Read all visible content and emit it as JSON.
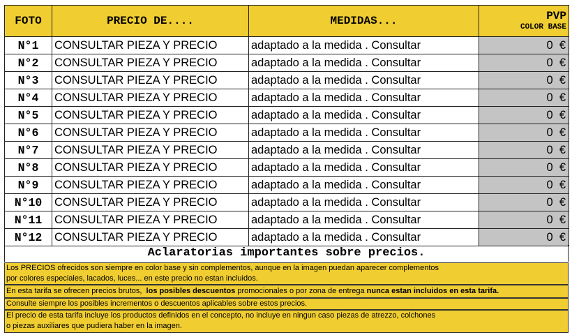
{
  "header": {
    "foto": "FOTO",
    "precio": "PRECIO DE....",
    "medidas": "MEDIDAS...",
    "pvp": "PVP",
    "pvp_sub": "COLOR BASE"
  },
  "rows": [
    {
      "foto": "N°1",
      "precio": "CONSULTAR PIEZA Y PRECIO",
      "medidas": "adaptado a la medida . Consultar",
      "pvp": "0  €"
    },
    {
      "foto": "N°2",
      "precio": "CONSULTAR PIEZA Y PRECIO",
      "medidas": "adaptado a la medida . Consultar",
      "pvp": "0  €"
    },
    {
      "foto": "N°3",
      "precio": "CONSULTAR PIEZA Y PRECIO",
      "medidas": "adaptado a la medida . Consultar",
      "pvp": "0  €"
    },
    {
      "foto": "N°4",
      "precio": "CONSULTAR PIEZA Y PRECIO",
      "medidas": "adaptado a la medida . Consultar",
      "pvp": "0  €"
    },
    {
      "foto": "N°5",
      "precio": "CONSULTAR PIEZA Y PRECIO",
      "medidas": "adaptado a la medida . Consultar",
      "pvp": "0  €"
    },
    {
      "foto": "N°6",
      "precio": "CONSULTAR PIEZA Y PRECIO",
      "medidas": "adaptado a la medida . Consultar",
      "pvp": "0  €"
    },
    {
      "foto": "N°7",
      "precio": "CONSULTAR PIEZA Y PRECIO",
      "medidas": "adaptado a la medida . Consultar",
      "pvp": "0  €"
    },
    {
      "foto": "N°8",
      "precio": "CONSULTAR PIEZA Y PRECIO",
      "medidas": "adaptado a la medida . Consultar",
      "pvp": "0  €"
    },
    {
      "foto": "N°9",
      "precio": "CONSULTAR PIEZA Y PRECIO",
      "medidas": "adaptado a la medida . Consultar",
      "pvp": "0  €"
    },
    {
      "foto": "N°10",
      "precio": "CONSULTAR PIEZA Y PRECIO",
      "medidas": "adaptado a la medida . Consultar",
      "pvp": "0  €"
    },
    {
      "foto": "N°11",
      "precio": "CONSULTAR PIEZA Y PRECIO",
      "medidas": "adaptado a la medida . Consultar",
      "pvp": "0  €"
    },
    {
      "foto": "N°12",
      "precio": "CONSULTAR PIEZA Y PRECIO",
      "medidas": "adaptado a la medida . Consultar",
      "pvp": "0  €"
    }
  ],
  "notes": {
    "title": "Aclaratorias importantes sobre precios.",
    "n1_l1": "Los PRECIOS ofrecidos son siempre en color base y sin complementos,  aunque en la imagen puedan aparecer complementos",
    "n1_l2": "por colores especiales, lacados, luces...  en este precio no estan incluidos.",
    "n2_a": "En esta tarifa se ofrecen precios brutos,  ",
    "n2_b": "los posibles descuentos",
    "n2_c": " promocionales o por zona de entrega ",
    "n2_d": "nunca estan incluidos en esta tarifa.",
    "n3": "Consulte siempre los posibles incrementos o descuentos aplicables sobre estos precios.",
    "n4_l1": "El precio de esta tarifa incluye los productos definidos en el concepto,  no incluye en ningun caso piezas de atrezzo, colchones",
    "n4_l2": "o piezas auxiliares que pudiera haber en la imagen."
  },
  "colors": {
    "header_bg": "#f0cd30",
    "price_bg": "#c4c4c4"
  }
}
